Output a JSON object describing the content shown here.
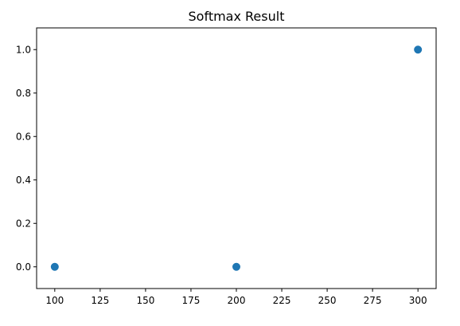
{
  "chart_data": {
    "type": "scatter",
    "title": "Softmax Result",
    "xlabel": "",
    "ylabel": "",
    "x": [
      100,
      200,
      300
    ],
    "y": [
      0.0,
      0.0,
      1.0
    ],
    "xlim": [
      90,
      310
    ],
    "ylim": [
      -0.1,
      1.1
    ],
    "xticks": [
      100,
      125,
      150,
      175,
      200,
      225,
      250,
      275,
      300
    ],
    "xtick_labels": [
      "100",
      "125",
      "150",
      "175",
      "200",
      "225",
      "250",
      "275",
      "300"
    ],
    "yticks": [
      0.0,
      0.2,
      0.4,
      0.6,
      0.8,
      1.0
    ],
    "ytick_labels": [
      "0.0",
      "0.2",
      "0.4",
      "0.6",
      "0.8",
      "1.0"
    ],
    "grid": false,
    "legend": "none",
    "marker_color": "#1f77b4"
  }
}
